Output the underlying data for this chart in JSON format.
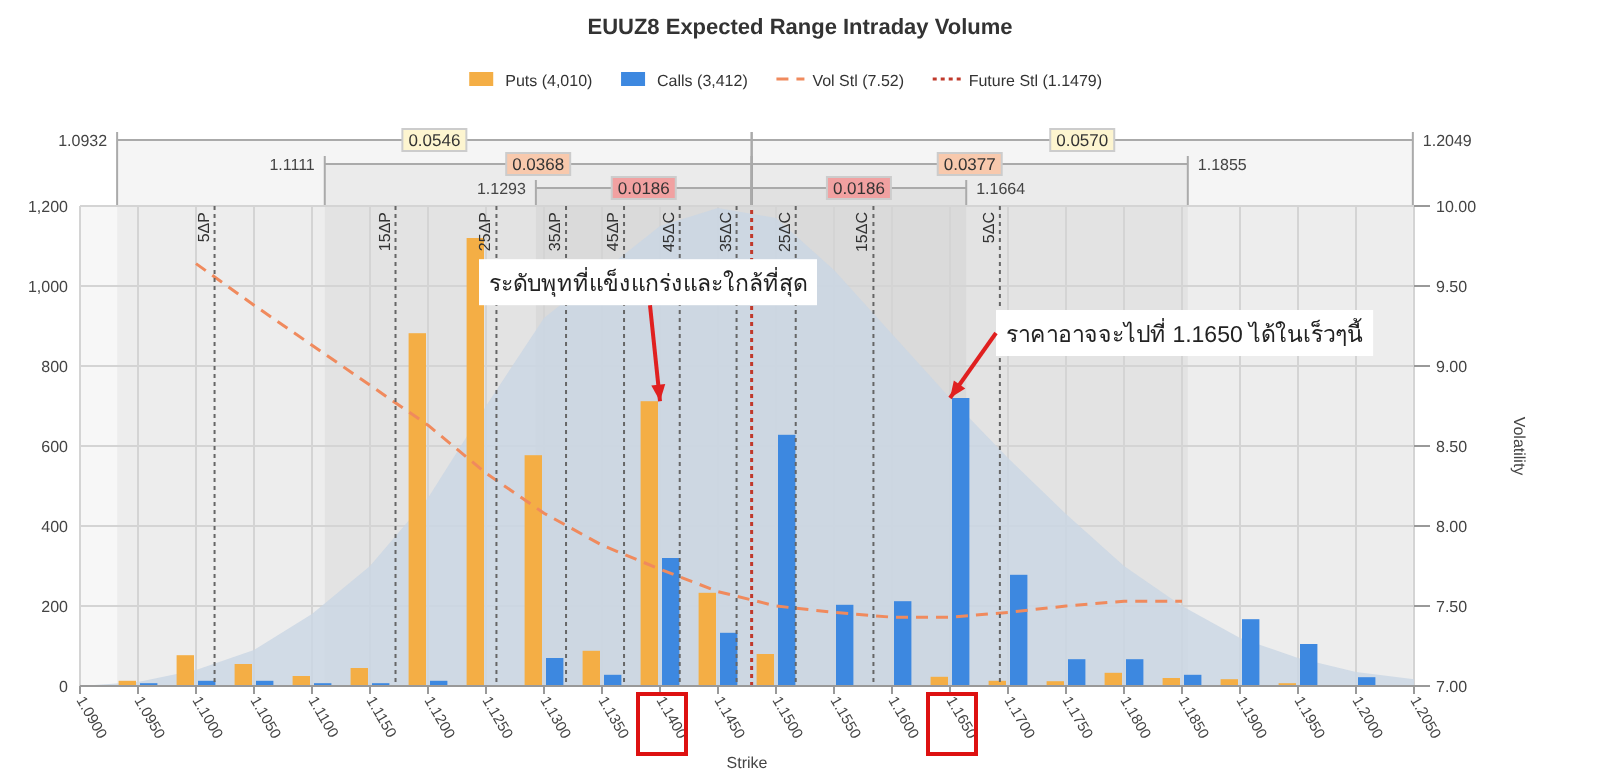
{
  "chart_data": {
    "type": "bar",
    "title": "EUUZ8 Expected Range Intraday Volume",
    "xlabel": "Strike",
    "y2label": "Volatility",
    "xlim": [
      1.09,
      1.205
    ],
    "xticks": [
      {
        "value": 1.09,
        "label": "1.0900"
      },
      {
        "value": 1.095,
        "label": "1.0950"
      },
      {
        "value": 1.1,
        "label": "1.1000"
      },
      {
        "value": 1.105,
        "label": "1.1050"
      },
      {
        "value": 1.11,
        "label": "1.1100"
      },
      {
        "value": 1.115,
        "label": "1.1150"
      },
      {
        "value": 1.12,
        "label": "1.1200"
      },
      {
        "value": 1.125,
        "label": "1.1250"
      },
      {
        "value": 1.13,
        "label": "1.1300"
      },
      {
        "value": 1.135,
        "label": "1.1350"
      },
      {
        "value": 1.14,
        "label": "1.1400"
      },
      {
        "value": 1.145,
        "label": "1.1450"
      },
      {
        "value": 1.15,
        "label": "1.1500"
      },
      {
        "value": 1.155,
        "label": "1.1550"
      },
      {
        "value": 1.16,
        "label": "1.1600"
      },
      {
        "value": 1.165,
        "label": "1.1650"
      },
      {
        "value": 1.17,
        "label": "1.1700"
      },
      {
        "value": 1.175,
        "label": "1.1750"
      },
      {
        "value": 1.18,
        "label": "1.1800"
      },
      {
        "value": 1.185,
        "label": "1.1850"
      },
      {
        "value": 1.19,
        "label": "1.1900"
      },
      {
        "value": 1.195,
        "label": "1.1950"
      },
      {
        "value": 1.2,
        "label": "1.2000"
      },
      {
        "value": 1.205,
        "label": "1.2050"
      }
    ],
    "ylim": [
      0,
      1200
    ],
    "yticks": [
      0,
      200,
      400,
      600,
      800,
      {
        "value": 1000,
        "label": "1,000"
      },
      {
        "value": 1200,
        "label": "1,200"
      }
    ],
    "y2lim": [
      7,
      10
    ],
    "y2ticks": [
      {
        "value": 7,
        "label": "7.00"
      },
      {
        "value": 7.5,
        "label": "7.50"
      },
      {
        "value": 8,
        "label": "8.00"
      },
      {
        "value": 8.5,
        "label": "8.50"
      },
      {
        "value": 9,
        "label": "9.00"
      },
      {
        "value": 9.5,
        "label": "9.50"
      },
      {
        "value": 10,
        "label": "10.00"
      }
    ],
    "grid": true,
    "legend": "top",
    "series": [
      {
        "type": "area",
        "color": "#c9d6e3",
        "x": [
          1.09,
          1.095,
          1.1,
          1.105,
          1.11,
          1.115,
          1.12,
          1.125,
          1.13,
          1.135,
          1.14,
          1.145,
          1.15,
          1.155,
          1.16,
          1.165,
          1.17,
          1.175,
          1.18,
          1.185,
          1.19,
          1.195,
          1.2,
          1.205
        ],
        "values": [
          0,
          10,
          40,
          90,
          180,
          300,
          470,
          700,
          920,
          null,
          1150,
          1195,
          1170,
          1040,
          880,
          720,
          570,
          430,
          300,
          200,
          120,
          70,
          35,
          17
        ]
      },
      {
        "name": "Puts (4,010)",
        "color": "#f4ae45",
        "x": [
          1.095,
          1.1,
          1.105,
          1.11,
          1.115,
          1.12,
          1.125,
          1.13,
          1.135,
          1.14,
          1.145,
          1.15,
          1.165,
          1.17,
          1.175,
          1.18,
          1.185,
          1.19,
          1.195
        ],
        "values": [
          13,
          77,
          55,
          25,
          45,
          882,
          1120,
          577,
          88,
          712,
          233,
          80,
          23,
          13,
          12,
          33,
          20,
          17,
          7
        ]
      },
      {
        "name": "Calls (3,412)",
        "color": "#3d88e0",
        "x": [
          1.095,
          1.1,
          1.105,
          1.11,
          1.115,
          1.12,
          1.13,
          1.135,
          1.14,
          1.145,
          1.15,
          1.155,
          1.16,
          1.165,
          1.17,
          1.175,
          1.18,
          1.185,
          1.19,
          1.195,
          1.2
        ],
        "values": [
          7,
          13,
          13,
          7,
          7,
          13,
          70,
          28,
          320,
          133,
          628,
          203,
          212,
          720,
          278,
          67,
          67,
          28,
          167,
          105,
          22
        ]
      },
      {
        "type": "line",
        "name": "Vol Stl (7.52)",
        "color": "#f08a5d",
        "axis": "y2",
        "line_style": "dashed",
        "x": [
          1.1,
          1.105,
          1.11,
          1.115,
          1.12,
          1.125,
          1.13,
          1.135,
          1.14,
          1.145,
          1.15,
          1.155,
          1.16,
          1.165,
          1.17,
          1.175,
          1.18,
          1.185
        ],
        "values": [
          9.64,
          9.38,
          9.13,
          8.88,
          8.63,
          8.33,
          8.08,
          7.88,
          7.73,
          7.59,
          7.5,
          7.46,
          7.43,
          7.43,
          7.46,
          7.5,
          7.53,
          7.53
        ]
      },
      {
        "type": "line",
        "name": "Future Stl (1.1479)",
        "color": "#c0392b",
        "line_style": "dotted",
        "x": [
          1.1479,
          1.1479
        ],
        "values": [
          0,
          1200
        ]
      }
    ],
    "ref_lines": [
      {
        "axis": "x",
        "value": 1.1016,
        "label": "5ΔP",
        "line_style": "dotted",
        "color": "#666666"
      },
      {
        "axis": "x",
        "value": 1.1172,
        "label": "15ΔP",
        "line_style": "dotted",
        "color": "#666666"
      },
      {
        "axis": "x",
        "value": 1.1259,
        "label": "25ΔP",
        "line_style": "dotted",
        "color": "#666666"
      },
      {
        "axis": "x",
        "value": 1.1319,
        "label": "35ΔP",
        "line_style": "dotted",
        "color": "#666666"
      },
      {
        "axis": "x",
        "value": 1.1369,
        "label": "45ΔP",
        "line_style": "dotted",
        "color": "#666666"
      },
      {
        "axis": "x",
        "value": 1.1417,
        "label": "45ΔC",
        "line_style": "dotted",
        "color": "#666666"
      },
      {
        "axis": "x",
        "value": 1.1466,
        "label": "35ΔC",
        "line_style": "dotted",
        "color": "#666666"
      },
      {
        "axis": "x",
        "value": 1.1517,
        "label": "25ΔC",
        "line_style": "dotted",
        "color": "#666666"
      },
      {
        "axis": "x",
        "value": 1.1584,
        "label": "15ΔC",
        "line_style": "dotted",
        "color": "#666666"
      },
      {
        "axis": "x",
        "value": 1.1693,
        "label": "5ΔC",
        "line_style": "dotted",
        "color": "#666666"
      }
    ],
    "bands": [
      {
        "axis": "x",
        "from": 1.0932,
        "to": 1.1479,
        "label": "0.0546"
      },
      {
        "axis": "x",
        "from": 1.1479,
        "to": 1.2049,
        "label": "0.0570"
      },
      {
        "axis": "x",
        "from": 1.1111,
        "to": 1.1479,
        "label": "0.0368"
      },
      {
        "axis": "x",
        "from": 1.1479,
        "to": 1.1855,
        "label": "0.0377"
      },
      {
        "axis": "x",
        "from": 1.1293,
        "to": 1.1479,
        "label": "0.0186"
      },
      {
        "axis": "x",
        "from": 1.1479,
        "to": 1.1664,
        "label": "0.0186"
      }
    ],
    "annotations": [
      {
        "text": "ระดับพุทที่แข็งแกร่งและใกล้ที่สุด",
        "x": 1.14,
        "y": 712
      },
      {
        "text": "ราคาอาจจะไปที่ 1.1650 ได้ในเร็วๆนี้",
        "x": 1.165,
        "y": 720
      },
      "1.0932",
      "1.2049",
      "1.1111",
      "1.1855",
      "1.1293",
      "1.1664"
    ]
  }
}
